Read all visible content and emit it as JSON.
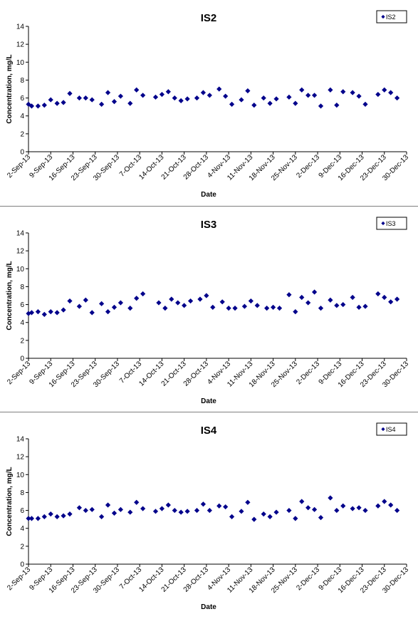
{
  "chart_data": [
    {
      "type": "scatter",
      "title": "IS2",
      "xlabel": "Date",
      "ylabel": "Concentration, mg/L",
      "ylim": [
        0,
        14
      ],
      "yticks": [
        0,
        2,
        4,
        6,
        8,
        10,
        12,
        14
      ],
      "xlim": [
        "2-Sep-13",
        "30-Dec-13"
      ],
      "xticks": [
        "2-Sep-13",
        "9-Sep-13",
        "16-Sep-13",
        "23-Sep-13",
        "30-Sep-13",
        "7-Oct-13",
        "14-Oct-13",
        "21-Oct-13",
        "28-Oct-13",
        "4-Nov-13",
        "11-Nov-13",
        "18-Nov-13",
        "25-Nov-13",
        "2-Dec-13",
        "9-Dec-13",
        "16-Dec-13",
        "23-Dec-13",
        "30-Dec-13"
      ],
      "legend_position": "top-right",
      "grid": false,
      "color": "#00008b",
      "series": [
        {
          "name": "IS2",
          "points": [
            {
              "x": "2-Sep-13",
              "y": 5.3
            },
            {
              "x": "3-Sep-13",
              "y": 5.1
            },
            {
              "x": "5-Sep-13",
              "y": 5.1
            },
            {
              "x": "7-Sep-13",
              "y": 5.2
            },
            {
              "x": "9-Sep-13",
              "y": 5.8
            },
            {
              "x": "11-Sep-13",
              "y": 5.4
            },
            {
              "x": "13-Sep-13",
              "y": 5.5
            },
            {
              "x": "15-Sep-13",
              "y": 6.5
            },
            {
              "x": "18-Sep-13",
              "y": 6.0
            },
            {
              "x": "20-Sep-13",
              "y": 6.0
            },
            {
              "x": "22-Sep-13",
              "y": 5.8
            },
            {
              "x": "25-Sep-13",
              "y": 5.3
            },
            {
              "x": "27-Sep-13",
              "y": 6.6
            },
            {
              "x": "29-Sep-13",
              "y": 5.6
            },
            {
              "x": "1-Oct-13",
              "y": 6.2
            },
            {
              "x": "4-Oct-13",
              "y": 5.4
            },
            {
              "x": "6-Oct-13",
              "y": 6.9
            },
            {
              "x": "8-Oct-13",
              "y": 6.3
            },
            {
              "x": "12-Oct-13",
              "y": 6.1
            },
            {
              "x": "14-Oct-13",
              "y": 6.4
            },
            {
              "x": "16-Oct-13",
              "y": 6.7
            },
            {
              "x": "18-Oct-13",
              "y": 6.0
            },
            {
              "x": "20-Oct-13",
              "y": 5.7
            },
            {
              "x": "22-Oct-13",
              "y": 5.9
            },
            {
              "x": "25-Oct-13",
              "y": 6.0
            },
            {
              "x": "27-Oct-13",
              "y": 6.6
            },
            {
              "x": "29-Oct-13",
              "y": 6.3
            },
            {
              "x": "1-Nov-13",
              "y": 7.0
            },
            {
              "x": "3-Nov-13",
              "y": 6.2
            },
            {
              "x": "5-Nov-13",
              "y": 5.3
            },
            {
              "x": "8-Nov-13",
              "y": 5.8
            },
            {
              "x": "10-Nov-13",
              "y": 6.8
            },
            {
              "x": "12-Nov-13",
              "y": 5.2
            },
            {
              "x": "15-Nov-13",
              "y": 6.0
            },
            {
              "x": "17-Nov-13",
              "y": 5.4
            },
            {
              "x": "19-Nov-13",
              "y": 5.9
            },
            {
              "x": "23-Nov-13",
              "y": 6.1
            },
            {
              "x": "25-Nov-13",
              "y": 5.4
            },
            {
              "x": "27-Nov-13",
              "y": 6.9
            },
            {
              "x": "29-Nov-13",
              "y": 6.3
            },
            {
              "x": "1-Dec-13",
              "y": 6.3
            },
            {
              "x": "3-Dec-13",
              "y": 5.1
            },
            {
              "x": "6-Dec-13",
              "y": 6.9
            },
            {
              "x": "8-Dec-13",
              "y": 5.2
            },
            {
              "x": "10-Dec-13",
              "y": 6.7
            },
            {
              "x": "13-Dec-13",
              "y": 6.6
            },
            {
              "x": "15-Dec-13",
              "y": 6.2
            },
            {
              "x": "17-Dec-13",
              "y": 5.3
            },
            {
              "x": "21-Dec-13",
              "y": 6.4
            },
            {
              "x": "23-Dec-13",
              "y": 6.9
            },
            {
              "x": "25-Dec-13",
              "y": 6.6
            },
            {
              "x": "27-Dec-13",
              "y": 6.0
            }
          ]
        }
      ]
    },
    {
      "type": "scatter",
      "title": "IS3",
      "xlabel": "Date",
      "ylabel": "Concentration, mg/L",
      "ylim": [
        0,
        14
      ],
      "yticks": [
        0,
        2,
        4,
        6,
        8,
        10,
        12,
        14
      ],
      "xlim": [
        "2-Sep-13",
        "30-Dec-13"
      ],
      "xticks": [
        "2-Sep-13",
        "9-Sep-13",
        "16-Sep-13",
        "23-Sep-13",
        "30-Sep-13",
        "7-Oct-13",
        "14-Oct-13",
        "21-Oct-13",
        "28-Oct-13",
        "4-Nov-13",
        "11-Nov-13",
        "18-Nov-13",
        "25-Nov-13",
        "2-Dec-13",
        "9-Dec-13",
        "16-Dec-13",
        "23-Dec-13",
        "30-Dec-13"
      ],
      "legend_position": "top-right",
      "grid": false,
      "color": "#00008b",
      "series": [
        {
          "name": "IS3",
          "points": [
            {
              "x": "2-Sep-13",
              "y": 5.0
            },
            {
              "x": "3-Sep-13",
              "y": 5.1
            },
            {
              "x": "5-Sep-13",
              "y": 5.2
            },
            {
              "x": "7-Sep-13",
              "y": 4.9
            },
            {
              "x": "9-Sep-13",
              "y": 5.2
            },
            {
              "x": "11-Sep-13",
              "y": 5.1
            },
            {
              "x": "13-Sep-13",
              "y": 5.4
            },
            {
              "x": "15-Sep-13",
              "y": 6.4
            },
            {
              "x": "18-Sep-13",
              "y": 5.8
            },
            {
              "x": "20-Sep-13",
              "y": 6.5
            },
            {
              "x": "22-Sep-13",
              "y": 5.1
            },
            {
              "x": "25-Sep-13",
              "y": 6.1
            },
            {
              "x": "27-Sep-13",
              "y": 5.2
            },
            {
              "x": "29-Sep-13",
              "y": 5.7
            },
            {
              "x": "1-Oct-13",
              "y": 6.2
            },
            {
              "x": "4-Oct-13",
              "y": 5.6
            },
            {
              "x": "6-Oct-13",
              "y": 6.7
            },
            {
              "x": "8-Oct-13",
              "y": 7.2
            },
            {
              "x": "13-Oct-13",
              "y": 6.2
            },
            {
              "x": "15-Oct-13",
              "y": 5.6
            },
            {
              "x": "17-Oct-13",
              "y": 6.6
            },
            {
              "x": "19-Oct-13",
              "y": 6.2
            },
            {
              "x": "21-Oct-13",
              "y": 5.9
            },
            {
              "x": "23-Oct-13",
              "y": 6.4
            },
            {
              "x": "26-Oct-13",
              "y": 6.6
            },
            {
              "x": "28-Oct-13",
              "y": 7.0
            },
            {
              "x": "30-Oct-13",
              "y": 5.7
            },
            {
              "x": "2-Nov-13",
              "y": 6.3
            },
            {
              "x": "4-Nov-13",
              "y": 5.6
            },
            {
              "x": "6-Nov-13",
              "y": 5.6
            },
            {
              "x": "9-Nov-13",
              "y": 5.8
            },
            {
              "x": "11-Nov-13",
              "y": 6.4
            },
            {
              "x": "13-Nov-13",
              "y": 5.9
            },
            {
              "x": "16-Nov-13",
              "y": 5.6
            },
            {
              "x": "18-Nov-13",
              "y": 5.7
            },
            {
              "x": "20-Nov-13",
              "y": 5.6
            },
            {
              "x": "23-Nov-13",
              "y": 7.1
            },
            {
              "x": "25-Nov-13",
              "y": 5.2
            },
            {
              "x": "27-Nov-13",
              "y": 6.8
            },
            {
              "x": "29-Nov-13",
              "y": 6.2
            },
            {
              "x": "1-Dec-13",
              "y": 7.4
            },
            {
              "x": "3-Dec-13",
              "y": 5.6
            },
            {
              "x": "6-Dec-13",
              "y": 6.5
            },
            {
              "x": "8-Dec-13",
              "y": 5.9
            },
            {
              "x": "10-Dec-13",
              "y": 6.0
            },
            {
              "x": "13-Dec-13",
              "y": 6.8
            },
            {
              "x": "15-Dec-13",
              "y": 5.7
            },
            {
              "x": "17-Dec-13",
              "y": 5.8
            },
            {
              "x": "21-Dec-13",
              "y": 7.2
            },
            {
              "x": "23-Dec-13",
              "y": 6.8
            },
            {
              "x": "25-Dec-13",
              "y": 6.3
            },
            {
              "x": "27-Dec-13",
              "y": 6.6
            }
          ]
        }
      ]
    },
    {
      "type": "scatter",
      "title": "IS4",
      "xlabel": "Date",
      "ylabel": "Concentration, mg/L",
      "ylim": [
        0,
        14
      ],
      "yticks": [
        0,
        2,
        4,
        6,
        8,
        10,
        12,
        14
      ],
      "xlim": [
        "2-Sep-13",
        "30-Dec-13"
      ],
      "xticks": [
        "2-Sep-13",
        "9-Sep-13",
        "16-Sep-13",
        "23-Sep-13",
        "30-Sep-13",
        "7-Oct-13",
        "14-Oct-13",
        "21-Oct-13",
        "28-Oct-13",
        "4-Nov-13",
        "11-Nov-13",
        "18-Nov-13",
        "25-Nov-13",
        "2-Dec-13",
        "9-Dec-13",
        "16-Dec-13",
        "23-Dec-13",
        "30-Dec-13"
      ],
      "legend_position": "top-right",
      "grid": false,
      "color": "#00008b",
      "series": [
        {
          "name": "IS4",
          "points": [
            {
              "x": "2-Sep-13",
              "y": 5.1
            },
            {
              "x": "3-Sep-13",
              "y": 5.1
            },
            {
              "x": "5-Sep-13",
              "y": 5.1
            },
            {
              "x": "7-Sep-13",
              "y": 5.3
            },
            {
              "x": "9-Sep-13",
              "y": 5.6
            },
            {
              "x": "11-Sep-13",
              "y": 5.3
            },
            {
              "x": "13-Sep-13",
              "y": 5.4
            },
            {
              "x": "15-Sep-13",
              "y": 5.6
            },
            {
              "x": "18-Sep-13",
              "y": 6.3
            },
            {
              "x": "20-Sep-13",
              "y": 6.0
            },
            {
              "x": "22-Sep-13",
              "y": 6.1
            },
            {
              "x": "25-Sep-13",
              "y": 5.3
            },
            {
              "x": "27-Sep-13",
              "y": 6.6
            },
            {
              "x": "29-Sep-13",
              "y": 5.7
            },
            {
              "x": "1-Oct-13",
              "y": 6.1
            },
            {
              "x": "4-Oct-13",
              "y": 5.8
            },
            {
              "x": "6-Oct-13",
              "y": 6.9
            },
            {
              "x": "8-Oct-13",
              "y": 6.2
            },
            {
              "x": "12-Oct-13",
              "y": 5.9
            },
            {
              "x": "14-Oct-13",
              "y": 6.2
            },
            {
              "x": "16-Oct-13",
              "y": 6.6
            },
            {
              "x": "18-Oct-13",
              "y": 6.0
            },
            {
              "x": "20-Oct-13",
              "y": 5.8
            },
            {
              "x": "22-Oct-13",
              "y": 5.9
            },
            {
              "x": "25-Oct-13",
              "y": 6.0
            },
            {
              "x": "27-Oct-13",
              "y": 6.7
            },
            {
              "x": "29-Oct-13",
              "y": 6.0
            },
            {
              "x": "1-Nov-13",
              "y": 6.5
            },
            {
              "x": "3-Nov-13",
              "y": 6.4
            },
            {
              "x": "5-Nov-13",
              "y": 5.3
            },
            {
              "x": "8-Nov-13",
              "y": 5.9
            },
            {
              "x": "10-Nov-13",
              "y": 6.9
            },
            {
              "x": "12-Nov-13",
              "y": 5.0
            },
            {
              "x": "15-Nov-13",
              "y": 5.6
            },
            {
              "x": "17-Nov-13",
              "y": 5.3
            },
            {
              "x": "19-Nov-13",
              "y": 5.8
            },
            {
              "x": "23-Nov-13",
              "y": 6.0
            },
            {
              "x": "25-Nov-13",
              "y": 5.1
            },
            {
              "x": "27-Nov-13",
              "y": 7.0
            },
            {
              "x": "29-Nov-13",
              "y": 6.3
            },
            {
              "x": "1-Dec-13",
              "y": 6.1
            },
            {
              "x": "3-Dec-13",
              "y": 5.2
            },
            {
              "x": "6-Dec-13",
              "y": 7.4
            },
            {
              "x": "8-Dec-13",
              "y": 6.0
            },
            {
              "x": "10-Dec-13",
              "y": 6.5
            },
            {
              "x": "13-Dec-13",
              "y": 6.2
            },
            {
              "x": "15-Dec-13",
              "y": 6.3
            },
            {
              "x": "17-Dec-13",
              "y": 6.0
            },
            {
              "x": "21-Dec-13",
              "y": 6.5
            },
            {
              "x": "23-Dec-13",
              "y": 7.0
            },
            {
              "x": "25-Dec-13",
              "y": 6.6
            },
            {
              "x": "27-Dec-13",
              "y": 6.0
            }
          ]
        }
      ]
    }
  ]
}
